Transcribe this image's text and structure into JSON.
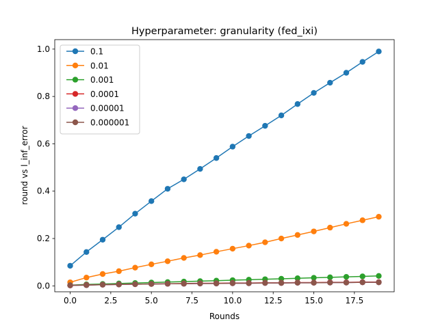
{
  "chart_data": {
    "type": "line",
    "title": "Hyperparameter: granularity (fed_ixi)",
    "xlabel": "Rounds",
    "ylabel": "round vs l_inf_error",
    "xlim": [
      -0.95,
      19.95
    ],
    "ylim": [
      -0.025,
      1.04
    ],
    "xticks": [
      0.0,
      2.5,
      5.0,
      7.5,
      10.0,
      12.5,
      15.0,
      17.5
    ],
    "xtick_labels": [
      "0.0",
      "2.5",
      "5.0",
      "7.5",
      "10.0",
      "12.5",
      "15.0",
      "17.5"
    ],
    "yticks": [
      0.0,
      0.2,
      0.4,
      0.6,
      0.8,
      1.0
    ],
    "ytick_labels": [
      "0.0",
      "0.2",
      "0.4",
      "0.6",
      "0.8",
      "1.0"
    ],
    "grid": false,
    "legend_position": "top-left",
    "x": [
      0,
      1,
      2,
      3,
      4,
      5,
      6,
      7,
      8,
      9,
      10,
      11,
      12,
      13,
      14,
      15,
      16,
      17,
      18,
      19
    ],
    "series": [
      {
        "name": "0.1",
        "color": "#1f77b4",
        "values": [
          0.085,
          0.143,
          0.195,
          0.248,
          0.305,
          0.358,
          0.41,
          0.45,
          0.494,
          0.54,
          0.588,
          0.633,
          0.676,
          0.72,
          0.768,
          0.815,
          0.858,
          0.9,
          0.946,
          0.99
        ]
      },
      {
        "name": "0.01",
        "color": "#ff7f0e",
        "values": [
          0.015,
          0.035,
          0.05,
          0.062,
          0.077,
          0.091,
          0.104,
          0.118,
          0.13,
          0.144,
          0.157,
          0.17,
          0.184,
          0.2,
          0.215,
          0.23,
          0.246,
          0.262,
          0.277,
          0.292
        ]
      },
      {
        "name": "0.001",
        "color": "#2ca02c",
        "values": [
          0.003,
          0.006,
          0.008,
          0.01,
          0.012,
          0.014,
          0.016,
          0.018,
          0.02,
          0.022,
          0.024,
          0.026,
          0.028,
          0.03,
          0.032,
          0.034,
          0.036,
          0.038,
          0.04,
          0.042
        ]
      },
      {
        "name": "0.0001",
        "color": "#d62728",
        "values": [
          0.002,
          0.004,
          0.005,
          0.006,
          0.007,
          0.008,
          0.009,
          0.01,
          0.011,
          0.011,
          0.012,
          0.012,
          0.013,
          0.013,
          0.014,
          0.014,
          0.015,
          0.015,
          0.016,
          0.016
        ]
      },
      {
        "name": "0.00001",
        "color": "#9467bd",
        "values": [
          0.002,
          0.003,
          0.005,
          0.006,
          0.007,
          0.008,
          0.009,
          0.009,
          0.01,
          0.01,
          0.011,
          0.011,
          0.012,
          0.012,
          0.013,
          0.013,
          0.014,
          0.014,
          0.015,
          0.015
        ]
      },
      {
        "name": "0.000001",
        "color": "#8c564b",
        "values": [
          0.002,
          0.003,
          0.005,
          0.006,
          0.007,
          0.008,
          0.009,
          0.009,
          0.01,
          0.01,
          0.011,
          0.011,
          0.012,
          0.012,
          0.013,
          0.013,
          0.014,
          0.014,
          0.015,
          0.015
        ]
      }
    ]
  }
}
